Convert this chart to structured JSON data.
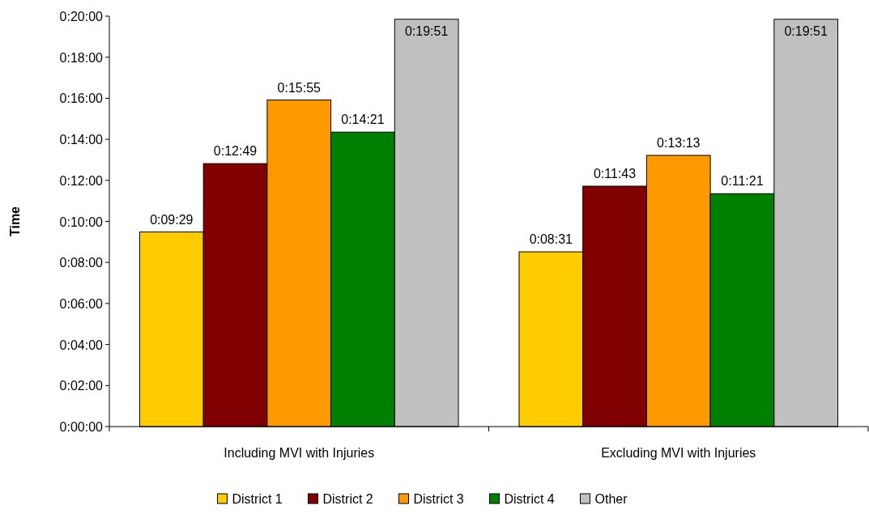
{
  "chart_data": {
    "type": "bar",
    "ylabel": "Time",
    "categories": [
      "Including MVI with Injuries",
      "Excluding MVI with Injuries"
    ],
    "series": [
      {
        "name": "District 1",
        "color": "#ffcc00",
        "values": [
          9.4833,
          8.5167
        ],
        "value_labels": [
          "0:09:29",
          "0:08:31"
        ]
      },
      {
        "name": "District 2",
        "color": "#800000",
        "values": [
          12.8167,
          11.7167
        ],
        "value_labels": [
          "0:12:49",
          "0:11:43"
        ]
      },
      {
        "name": "District 3",
        "color": "#ff9900",
        "values": [
          15.9167,
          13.2167
        ],
        "value_labels": [
          "0:15:55",
          "0:13:13"
        ]
      },
      {
        "name": "District 4",
        "color": "#008000",
        "values": [
          14.35,
          11.35
        ],
        "value_labels": [
          "0:14:21",
          "0:11:21"
        ]
      },
      {
        "name": "Other",
        "color": "#c0c0c0",
        "values": [
          19.85,
          19.85
        ],
        "value_labels": [
          "0:19:51",
          "0:19:51"
        ]
      }
    ],
    "ylim": [
      0,
      20
    ],
    "yticks": [
      {
        "value": 0,
        "label": "0:00:00"
      },
      {
        "value": 2,
        "label": "0:02:00"
      },
      {
        "value": 4,
        "label": "0:04:00"
      },
      {
        "value": 6,
        "label": "0:06:00"
      },
      {
        "value": 8,
        "label": "0:08:00"
      },
      {
        "value": 10,
        "label": "0:10:00"
      },
      {
        "value": 12,
        "label": "0:12:00"
      },
      {
        "value": 14,
        "label": "0:14:00"
      },
      {
        "value": 16,
        "label": "0:16:00"
      },
      {
        "value": 18,
        "label": "0:18:00"
      },
      {
        "value": 20,
        "label": "0:20:00"
      }
    ],
    "grid": false,
    "legend": "bottom"
  }
}
